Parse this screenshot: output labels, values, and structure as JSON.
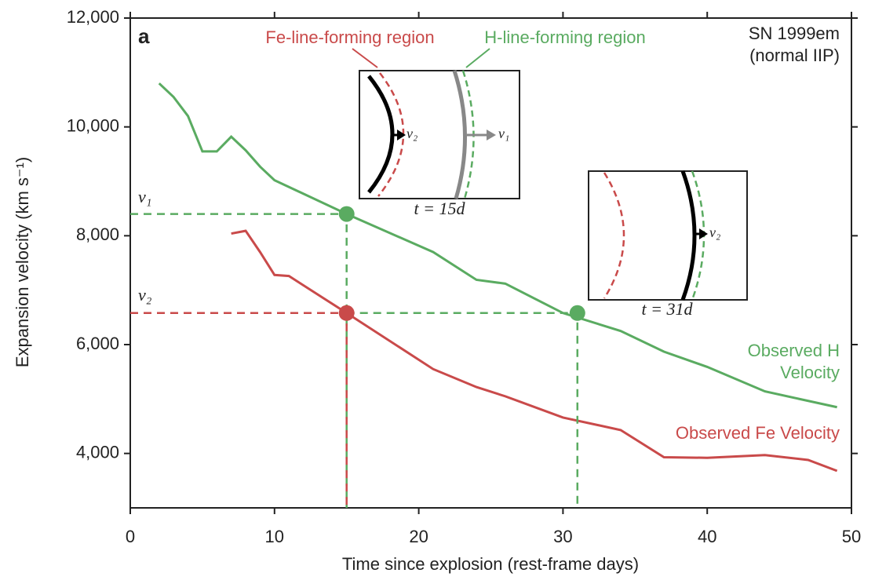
{
  "chart_data": {
    "type": "line",
    "annotations": {
      "panel": "a",
      "object": "SN 1999em",
      "object_type": "(normal IIP)",
      "fe_region": "Fe-line-forming region",
      "h_region": "H-line-forming region",
      "h_label_1": "Observed H",
      "h_label_2": "Velocity",
      "fe_label": "Observed Fe Velocity",
      "v1": "v₁",
      "v2": "v₂",
      "inset1_v2": "v₂",
      "inset1_v1": "v₁",
      "inset1_time": "t = 15d",
      "inset2_v2": "v₂",
      "inset2_time": "t = 31d"
    },
    "x_label": "Time since explosion (rest-frame days)",
    "y_label": "Expansion velocity (km s⁻¹)",
    "xlim": [
      0,
      50
    ],
    "xticks": [
      0,
      10,
      20,
      30,
      40,
      50
    ],
    "ylim": [
      3000,
      12000
    ],
    "yticks": [
      {
        "value": 4000,
        "label": "4,000"
      },
      {
        "value": 6000,
        "label": "6,000"
      },
      {
        "value": 8000,
        "label": "8,000"
      },
      {
        "value": 10000,
        "label": "10,000"
      },
      {
        "value": 12000,
        "label": "12,000"
      }
    ],
    "series": [
      {
        "color": "#5aab61",
        "x": [
          2,
          3,
          4,
          5,
          6,
          7,
          8,
          9,
          10,
          15,
          21,
          24,
          26,
          30,
          34,
          37,
          40,
          44,
          49
        ],
        "values": [
          10800,
          10550,
          10200,
          9550,
          9550,
          9820,
          9570,
          9270,
          9020,
          8400,
          7700,
          7190,
          7120,
          6580,
          6250,
          5870,
          5590,
          5140,
          4850
        ]
      },
      {
        "color": "#c94a4a",
        "x": [
          7,
          8,
          9,
          10,
          11,
          15,
          21,
          24,
          26,
          30,
          34,
          37,
          40,
          44,
          47,
          49
        ],
        "values": [
          8040,
          8090,
          7700,
          7280,
          7260,
          6580,
          5550,
          5220,
          5050,
          4660,
          4430,
          3930,
          3920,
          3970,
          3880,
          3680
        ]
      }
    ],
    "markers": [
      {
        "x": 15,
        "y": 8400,
        "color": "#5aab61"
      },
      {
        "x": 15,
        "y": 6580,
        "color": "#c94a4a"
      },
      {
        "x": 31,
        "y": 6580,
        "color": "#5aab61"
      }
    ]
  }
}
